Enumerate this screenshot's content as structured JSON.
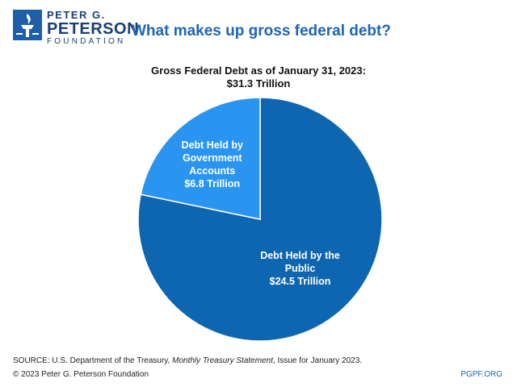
{
  "brand": {
    "line1": "PETER G.",
    "line2": "PETERSON",
    "line3": "FOUNDATION",
    "color": "#1f5fa8"
  },
  "chart_data": {
    "type": "pie",
    "title": "What makes up gross federal debt?",
    "subtitle_line1": "Gross Federal Debt as of January 31, 2023:",
    "subtitle_line2": "$31.3 Trillion",
    "total": 31.3,
    "unit": "Trillion",
    "slices": [
      {
        "label_lines": [
          "Debt Held by the",
          "Public",
          "$24.5 Trillion"
        ],
        "value": 24.5,
        "color": "#0e66b0"
      },
      {
        "label_lines": [
          "Debt Held by",
          "Government",
          "Accounts",
          "$6.8 Trillion"
        ],
        "value": 6.8,
        "color": "#2a95f0"
      }
    ]
  },
  "footer": {
    "source_prefix": "SOURCE: U.S. Department of the Treasury, ",
    "source_title": "Monthly Treasury Statement",
    "source_suffix": ", Issue for January 2023.",
    "copyright": "© 2023 Peter G. Peterson Foundation",
    "site": "PGPF.ORG"
  }
}
